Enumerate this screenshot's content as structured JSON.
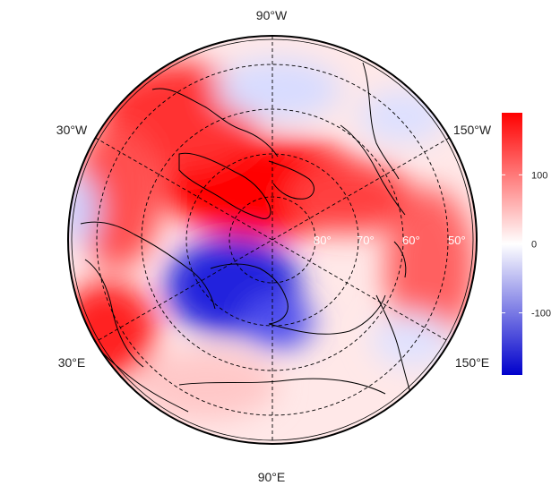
{
  "map": {
    "projection": "north-polar-stereographic",
    "longitude_labels": [
      "90°W",
      "30°W",
      "150°W",
      "30°E",
      "150°E",
      "90°E"
    ],
    "latitude_labels": [
      "80°",
      "70°",
      "60°",
      "50°"
    ],
    "colors": {
      "positive": "#ff0000",
      "neutral": "#ffffff",
      "negative": "#0000cc",
      "coastline": "#000000",
      "graticule": "#000000"
    }
  },
  "colorbar": {
    "tick_labels": [
      "100",
      "0",
      "-100"
    ],
    "range": [
      -190,
      190
    ],
    "ticks": [
      100,
      0,
      -100
    ]
  }
}
